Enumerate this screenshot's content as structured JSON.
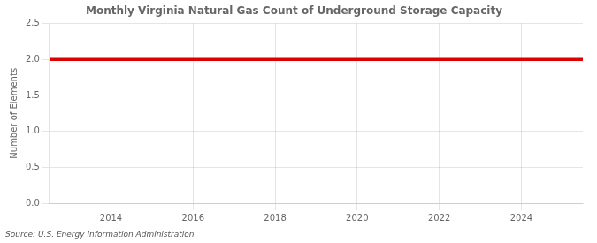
{
  "chart_data": {
    "type": "line",
    "title": "Monthly Virginia Natural Gas Count of Underground Storage Capacity",
    "ylabel": "Number of Elements",
    "annotations": [
      "Source: U.S. Energy Information Administration"
    ],
    "x": [
      2012.5,
      2025.5
    ],
    "values": [
      2.0,
      2.0
    ],
    "color": "#dd0000",
    "xlim": [
      2012.5,
      2025.5
    ],
    "xticks": [
      2014,
      2016,
      2018,
      2020,
      2022,
      2024
    ],
    "ylim": [
      0.0,
      2.5
    ],
    "yticks": [
      {
        "value": 0.0,
        "label": "0.0"
      },
      0.5,
      {
        "value": 1.0,
        "label": "1.0"
      },
      1.5,
      {
        "value": 2.0,
        "label": "2.0"
      },
      2.5
    ],
    "grid": true
  }
}
